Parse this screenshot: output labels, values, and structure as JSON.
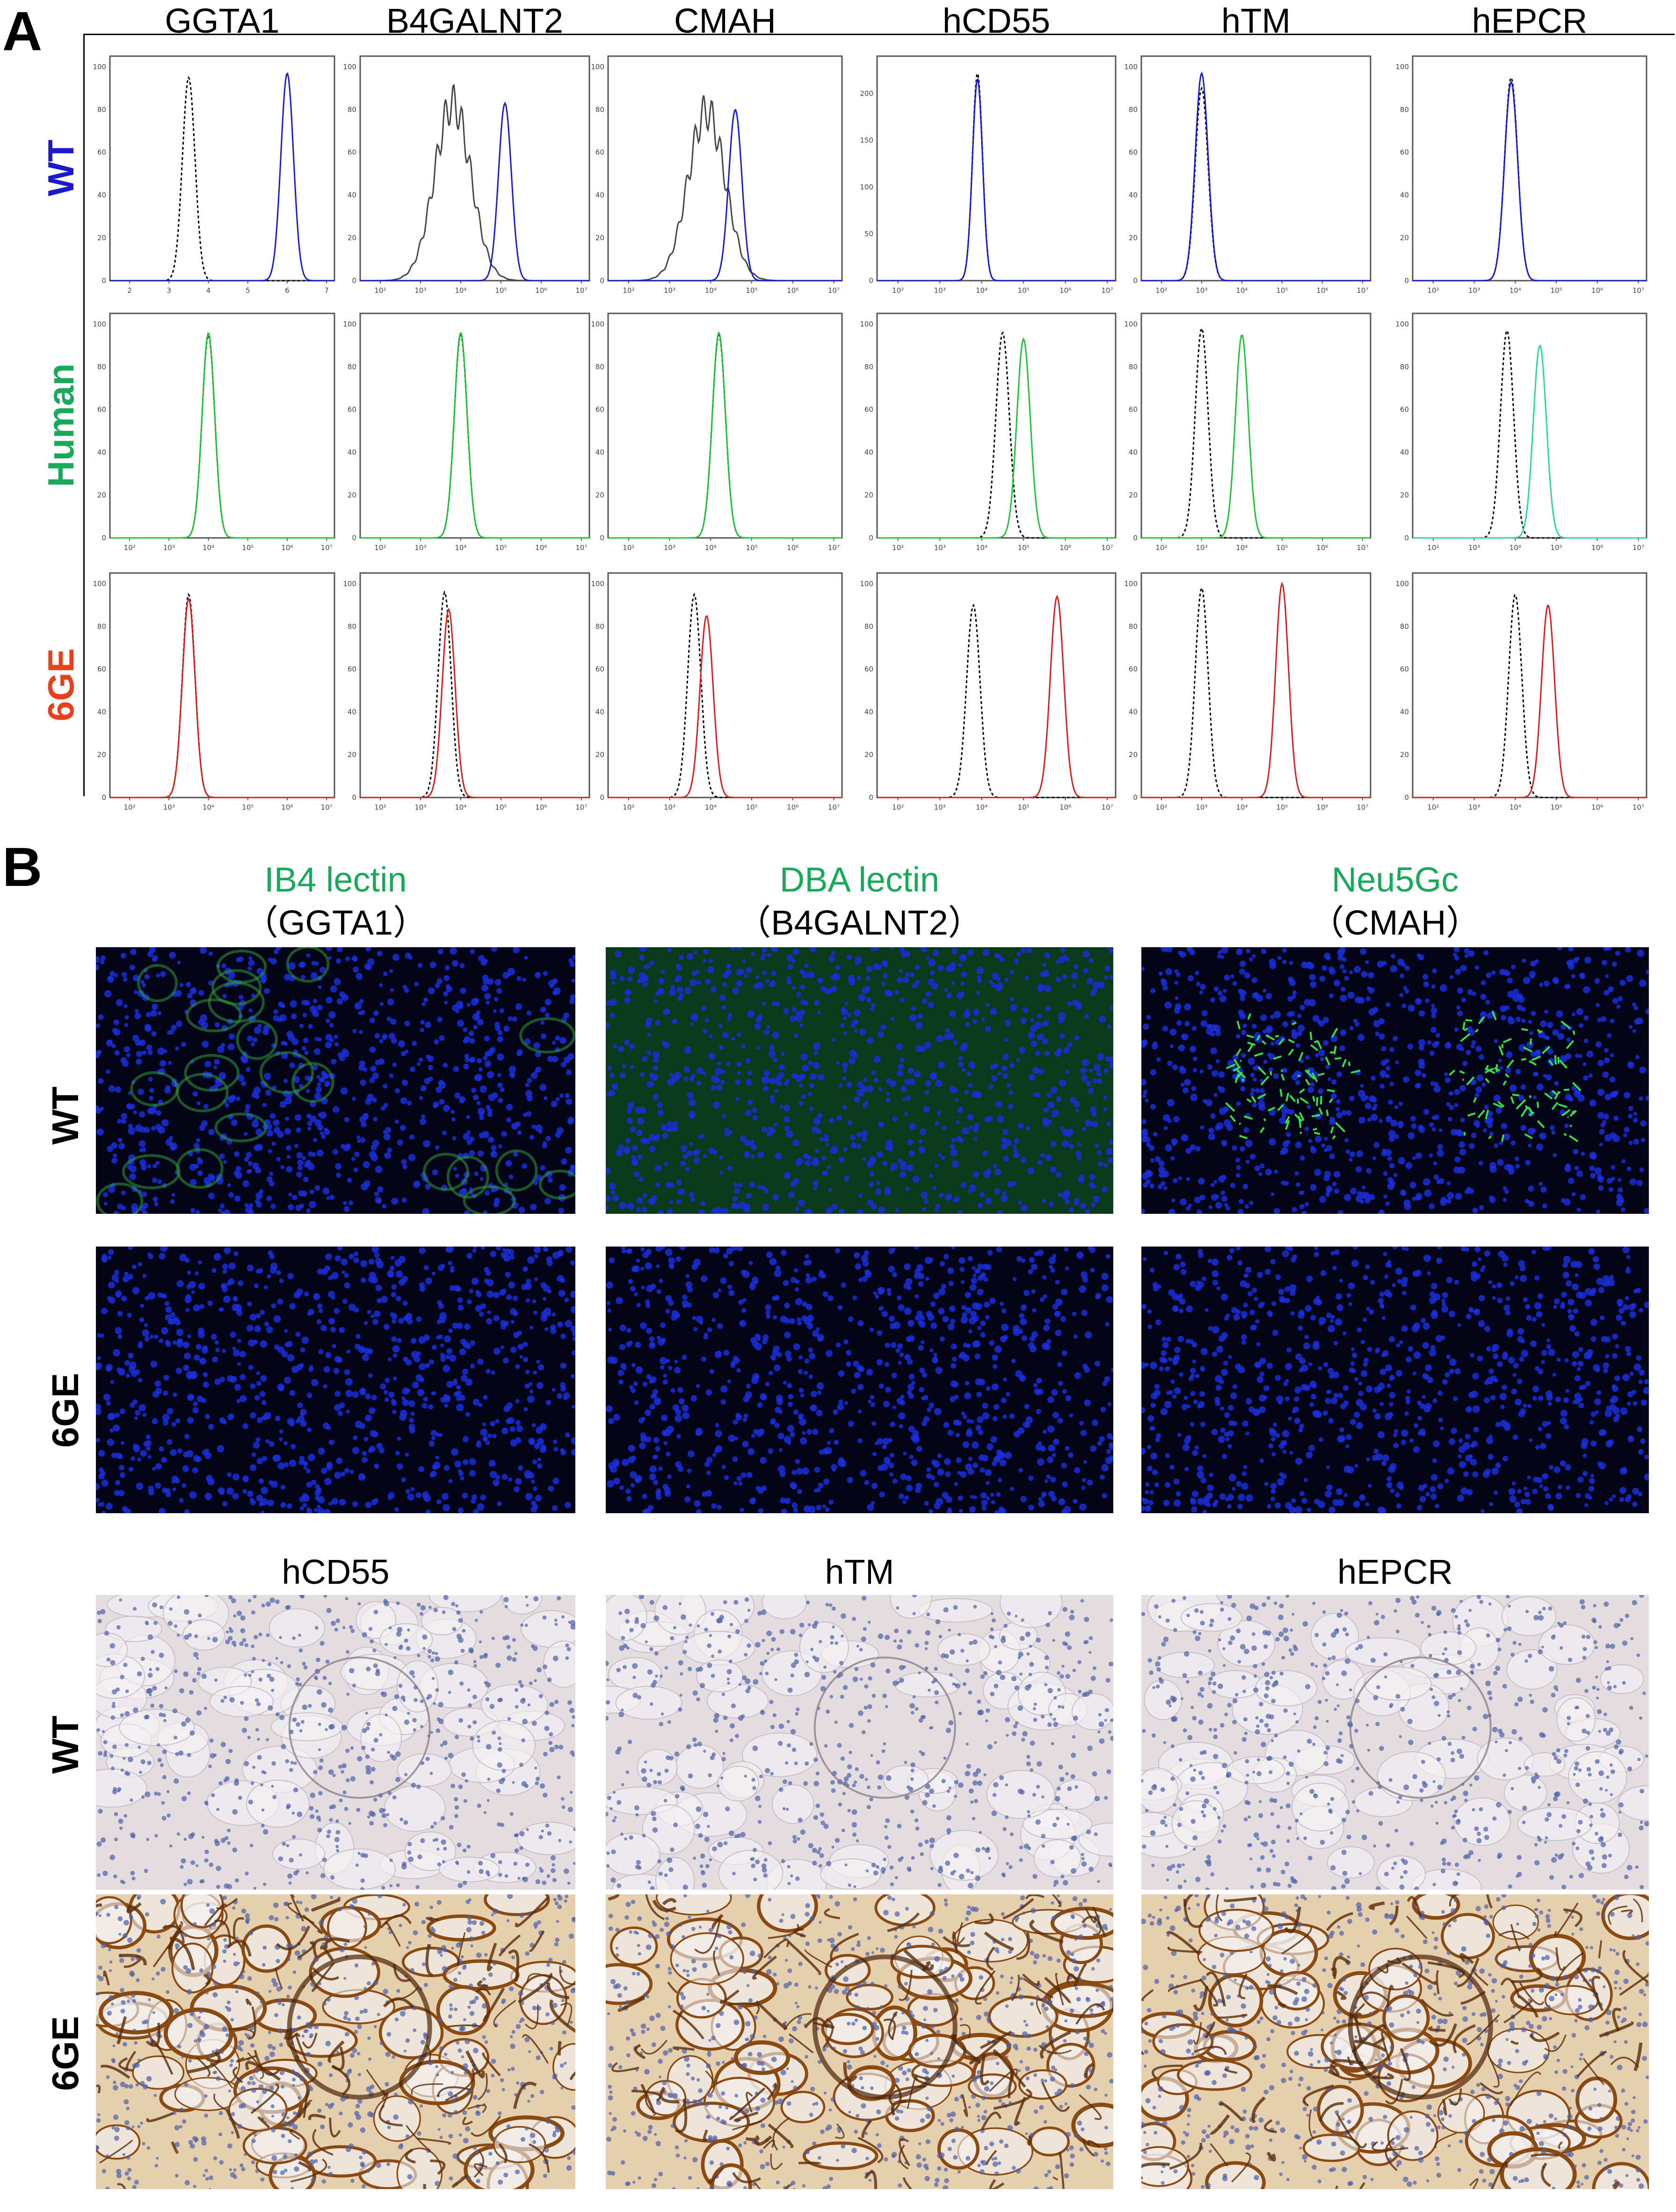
{
  "panel_a": {
    "letter": "A",
    "columns": [
      "GGTA1",
      "B4GALNT2",
      "CMAH",
      "hCD55",
      "hTM",
      "hEPCR"
    ],
    "rows": [
      {
        "label": "WT",
        "color": "#1a1acc"
      },
      {
        "label": "Human",
        "color": "#1aa85a"
      },
      {
        "label": "6GE",
        "color": "#e8401c"
      }
    ],
    "y_ticks": {
      "r0c0": [
        "0",
        "20",
        "40",
        "60",
        "80",
        "100"
      ],
      "r0c1": [
        "0",
        "20",
        "40",
        "60",
        "80",
        "100"
      ],
      "r0c2": [
        "0",
        "20",
        "40",
        "60",
        "80",
        "100"
      ],
      "r0c3": [
        "0",
        "50",
        "100",
        "150",
        "200"
      ],
      "r0c4": [
        "0",
        "20",
        "40",
        "60",
        "80",
        "100"
      ],
      "r0c5": [
        "0",
        "20",
        "40",
        "60",
        "80",
        "100"
      ],
      "default": [
        "0",
        "20",
        "40",
        "60",
        "80",
        "100"
      ]
    },
    "x_ticks": {
      "r0c0": [
        "2",
        "3",
        "4",
        "5",
        "6",
        "7"
      ],
      "default": [
        "10²",
        "10³",
        "10⁴",
        "10⁵",
        "10⁶",
        "10⁷"
      ]
    }
  },
  "chart_data": [
    {
      "type": "line",
      "title": "GGTA1",
      "row": "WT",
      "series": [
        {
          "style": "dotted",
          "peak_x": "10^3.5",
          "peak_y": 95
        },
        {
          "style": "solid",
          "color": "#1a1acc",
          "peak_x": "10^6",
          "peak_y": 97
        }
      ]
    },
    {
      "type": "line",
      "title": "B4GALNT2",
      "row": "WT",
      "series": [
        {
          "style": "solid-gray",
          "peak_x": "10^3.8",
          "peak_y": 92
        },
        {
          "style": "solid",
          "color": "#1a1acc",
          "peak_x": "10^5.1",
          "peak_y": 83
        }
      ]
    },
    {
      "type": "line",
      "title": "CMAH",
      "row": "WT",
      "series": [
        {
          "style": "solid-gray",
          "peak_x": "10^3.9",
          "peak_y": 88
        },
        {
          "style": "solid",
          "color": "#1a1acc",
          "peak_x": "10^4.6",
          "peak_y": 80
        }
      ]
    },
    {
      "type": "line",
      "title": "hCD55",
      "row": "WT",
      "series": [
        {
          "style": "dotted",
          "peak_x": "10^3.9",
          "peak_y": 222
        },
        {
          "style": "solid",
          "color": "#1a1acc",
          "peak_x": "10^3.9",
          "peak_y": 216
        }
      ]
    },
    {
      "type": "line",
      "title": "hTM",
      "row": "WT",
      "series": [
        {
          "style": "dotted",
          "peak_x": "10^3.0",
          "peak_y": 90
        },
        {
          "style": "solid",
          "color": "#1a1acc",
          "peak_x": "10^3.0",
          "peak_y": 97
        }
      ]
    },
    {
      "type": "line",
      "title": "hEPCR",
      "row": "WT",
      "series": [
        {
          "style": "dotted",
          "peak_x": "10^3.9",
          "peak_y": 95
        },
        {
          "style": "solid",
          "color": "#1a1acc",
          "peak_x": "10^3.9",
          "peak_y": 93
        }
      ]
    },
    {
      "type": "line",
      "title": "GGTA1",
      "row": "Human",
      "series": [
        {
          "style": "dotted",
          "peak_x": "10^4.0",
          "peak_y": 95
        },
        {
          "style": "solid",
          "color": "#22c03a",
          "peak_x": "10^4.0",
          "peak_y": 96
        }
      ]
    },
    {
      "type": "line",
      "title": "B4GALNT2",
      "row": "Human",
      "series": [
        {
          "style": "dotted",
          "peak_x": "10^4.0",
          "peak_y": 95
        },
        {
          "style": "solid",
          "color": "#22c03a",
          "peak_x": "10^4.0",
          "peak_y": 96
        }
      ]
    },
    {
      "type": "line",
      "title": "CMAH",
      "row": "Human",
      "series": [
        {
          "style": "dotted",
          "peak_x": "10^4.2",
          "peak_y": 95
        },
        {
          "style": "solid",
          "color": "#22c03a",
          "peak_x": "10^4.2",
          "peak_y": 96
        }
      ]
    },
    {
      "type": "line",
      "title": "hCD55",
      "row": "Human",
      "series": [
        {
          "style": "dotted",
          "peak_x": "10^4.5",
          "peak_y": 96
        },
        {
          "style": "solid",
          "color": "#22c03a",
          "peak_x": "10^5.0",
          "peak_y": 93
        }
      ]
    },
    {
      "type": "line",
      "title": "hTM",
      "row": "Human",
      "series": [
        {
          "style": "dotted",
          "peak_x": "10^3.0",
          "peak_y": 98
        },
        {
          "style": "solid",
          "color": "#22c03a",
          "peak_x": "10^4.0",
          "peak_y": 95
        }
      ]
    },
    {
      "type": "line",
      "title": "hEPCR",
      "row": "Human",
      "series": [
        {
          "style": "dotted",
          "peak_x": "10^3.8",
          "peak_y": 97
        },
        {
          "style": "solid",
          "color": "#2ad79c",
          "peak_x": "10^4.6",
          "peak_y": 90
        }
      ]
    },
    {
      "type": "line",
      "title": "GGTA1",
      "row": "6GE",
      "series": [
        {
          "style": "dotted",
          "peak_x": "10^3.5",
          "peak_y": 95
        },
        {
          "style": "solid",
          "color": "#d62020",
          "peak_x": "10^3.5",
          "peak_y": 93
        }
      ]
    },
    {
      "type": "line",
      "title": "B4GALNT2",
      "row": "6GE",
      "series": [
        {
          "style": "dotted",
          "peak_x": "10^3.6",
          "peak_y": 96
        },
        {
          "style": "solid",
          "color": "#d62020",
          "peak_x": "10^3.7",
          "peak_y": 88
        }
      ]
    },
    {
      "type": "line",
      "title": "CMAH",
      "row": "6GE",
      "series": [
        {
          "style": "dotted",
          "peak_x": "10^3.6",
          "peak_y": 95
        },
        {
          "style": "solid",
          "color": "#d62020",
          "peak_x": "10^3.9",
          "peak_y": 85
        }
      ]
    },
    {
      "type": "line",
      "title": "hCD55",
      "row": "6GE",
      "series": [
        {
          "style": "dotted",
          "peak_x": "10^3.8",
          "peak_y": 90
        },
        {
          "style": "solid",
          "color": "#d62020",
          "peak_x": "10^5.8",
          "peak_y": 94
        }
      ]
    },
    {
      "type": "line",
      "title": "hTM",
      "row": "6GE",
      "series": [
        {
          "style": "dotted",
          "peak_x": "10^3.0",
          "peak_y": 98
        },
        {
          "style": "solid",
          "color": "#d62020",
          "peak_x": "10^5.0",
          "peak_y": 100
        }
      ]
    },
    {
      "type": "line",
      "title": "hEPCR",
      "row": "6GE",
      "series": [
        {
          "style": "dotted",
          "peak_x": "10^4.0",
          "peak_y": 95
        },
        {
          "style": "solid",
          "color": "#d62020",
          "peak_x": "10^4.8",
          "peak_y": 90
        }
      ]
    }
  ],
  "panel_b": {
    "letter": "B",
    "if_columns": [
      {
        "stain": "IB4 lectin",
        "gene": "（GGTA1）"
      },
      {
        "stain": "DBA lectin",
        "gene": "（B4GALNT2）"
      },
      {
        "stain": "Neu5Gc",
        "gene": "（CMAH）"
      }
    ],
    "stain_color": "#1aa85a",
    "if_rows": [
      "WT",
      "6GE"
    ],
    "ihc_columns": [
      "hCD55",
      "hTM",
      "hEPCR"
    ],
    "ihc_rows": [
      "WT",
      "6GE"
    ]
  }
}
